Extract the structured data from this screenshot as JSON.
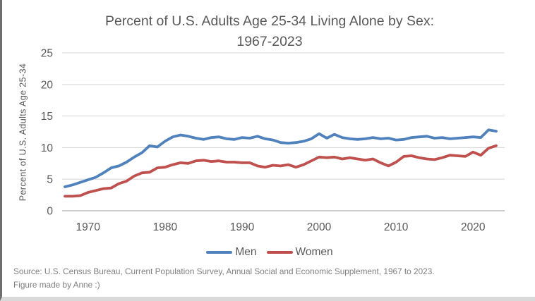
{
  "title": {
    "line1": "Percent of U.S. Adults Age 25-34 Living Alone by Sex:",
    "line2": "1967-2023"
  },
  "source": {
    "line1": "Source: U.S. Census Bureau, Current Population Survey, Annual Social and Economic Supplement, 1967 to 2023.",
    "line2": "Figure made by Anne :)"
  },
  "colors": {
    "men_line": "#4f81bd",
    "women_line": "#c0504d",
    "axis_text": "#595959",
    "gridline": "#d9d9d9",
    "zero_axis_line": "#bfbfbf",
    "source_text": "#7f7f7f"
  },
  "chart_data": {
    "type": "line",
    "title": "Percent of U.S. Adults Age 25-34 Living Alone by Sex: 1967-2023",
    "xlabel": "",
    "ylabel": "Percent of U.S. Adults Age 25-34",
    "ylim": [
      0,
      25
    ],
    "yticks": [
      0,
      5,
      10,
      15,
      20,
      25
    ],
    "xticks": [
      1970,
      1980,
      1990,
      2000,
      2010,
      2020
    ],
    "grid": true,
    "legend_position": "bottom",
    "x": [
      1967,
      1968,
      1969,
      1970,
      1971,
      1972,
      1973,
      1974,
      1975,
      1976,
      1977,
      1978,
      1979,
      1980,
      1981,
      1982,
      1983,
      1984,
      1985,
      1986,
      1987,
      1988,
      1989,
      1990,
      1991,
      1992,
      1993,
      1994,
      1995,
      1996,
      1997,
      1998,
      1999,
      2000,
      2001,
      2002,
      2003,
      2004,
      2005,
      2006,
      2007,
      2008,
      2009,
      2010,
      2011,
      2012,
      2013,
      2014,
      2015,
      2016,
      2017,
      2018,
      2019,
      2020,
      2021,
      2022,
      2023
    ],
    "series": [
      {
        "name": "Men",
        "color": "#4f81bd",
        "values": [
          3.8,
          4.1,
          4.5,
          4.9,
          5.3,
          6.0,
          6.8,
          7.1,
          7.7,
          8.5,
          9.2,
          10.3,
          10.1,
          11.0,
          11.7,
          12.0,
          11.8,
          11.5,
          11.3,
          11.6,
          11.7,
          11.4,
          11.3,
          11.6,
          11.5,
          11.8,
          11.4,
          11.2,
          10.8,
          10.7,
          10.8,
          11.0,
          11.4,
          12.2,
          11.5,
          12.1,
          11.6,
          11.4,
          11.3,
          11.4,
          11.6,
          11.4,
          11.5,
          11.2,
          11.3,
          11.6,
          11.7,
          11.8,
          11.5,
          11.6,
          11.4,
          11.5,
          11.6,
          11.7,
          11.6,
          12.8,
          12.6
        ]
      },
      {
        "name": "Women",
        "color": "#c0504d",
        "values": [
          2.3,
          2.3,
          2.4,
          2.9,
          3.2,
          3.5,
          3.6,
          4.3,
          4.7,
          5.5,
          6.0,
          6.1,
          6.8,
          6.9,
          7.3,
          7.6,
          7.5,
          7.9,
          8.0,
          7.8,
          7.9,
          7.7,
          7.7,
          7.6,
          7.6,
          7.1,
          6.9,
          7.2,
          7.1,
          7.3,
          6.9,
          7.3,
          7.9,
          8.5,
          8.4,
          8.5,
          8.2,
          8.4,
          8.2,
          8.0,
          8.2,
          7.6,
          7.1,
          7.7,
          8.6,
          8.7,
          8.4,
          8.2,
          8.1,
          8.4,
          8.8,
          8.7,
          8.6,
          9.3,
          8.8,
          9.9,
          10.3
        ]
      }
    ]
  }
}
